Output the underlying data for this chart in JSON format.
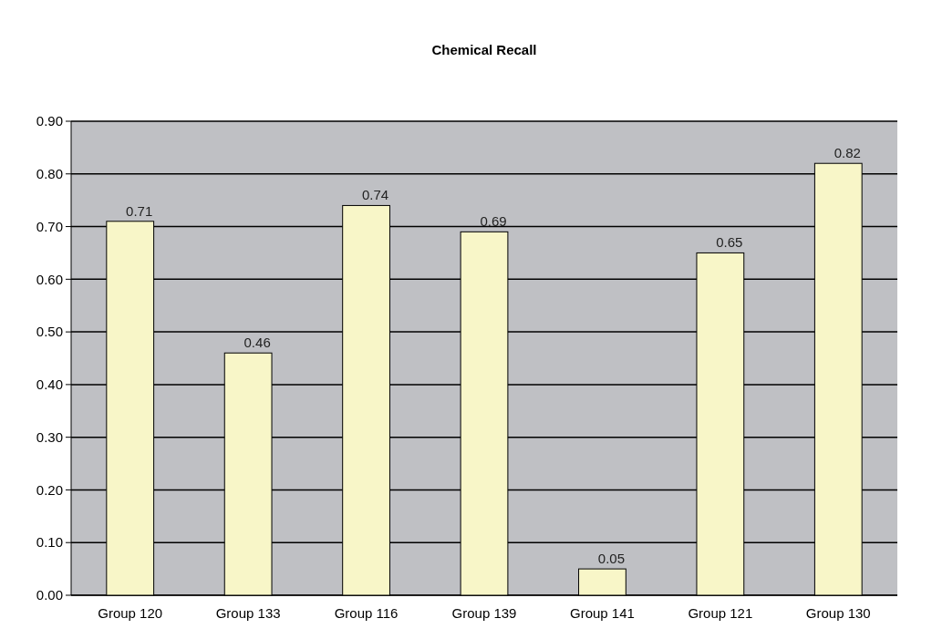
{
  "chart_data": {
    "type": "bar",
    "title": "Chemical Recall",
    "categories": [
      "Group 120",
      "Group 133",
      "Group 116",
      "Group 139",
      "Group 141",
      "Group 121",
      "Group 130"
    ],
    "values": [
      0.71,
      0.46,
      0.74,
      0.69,
      0.05,
      0.65,
      0.82
    ],
    "color": "#f8f6c8",
    "ylim": [
      0,
      0.9
    ],
    "yticks": [
      {
        "value": 0,
        "label": "0.00"
      },
      {
        "value": 0.1,
        "label": "0.10"
      },
      {
        "value": 0.2,
        "label": "0.20"
      },
      {
        "value": 0.3,
        "label": "0.30"
      },
      {
        "value": 0.4,
        "label": "0.40"
      },
      {
        "value": 0.5,
        "label": "0.50"
      },
      {
        "value": 0.6,
        "label": "0.60"
      },
      {
        "value": 0.7,
        "label": "0.70"
      },
      {
        "value": 0.8,
        "label": "0.80"
      },
      {
        "value": 0.9,
        "label": "0.90"
      }
    ],
    "grid": "y",
    "data_labels": true
  }
}
